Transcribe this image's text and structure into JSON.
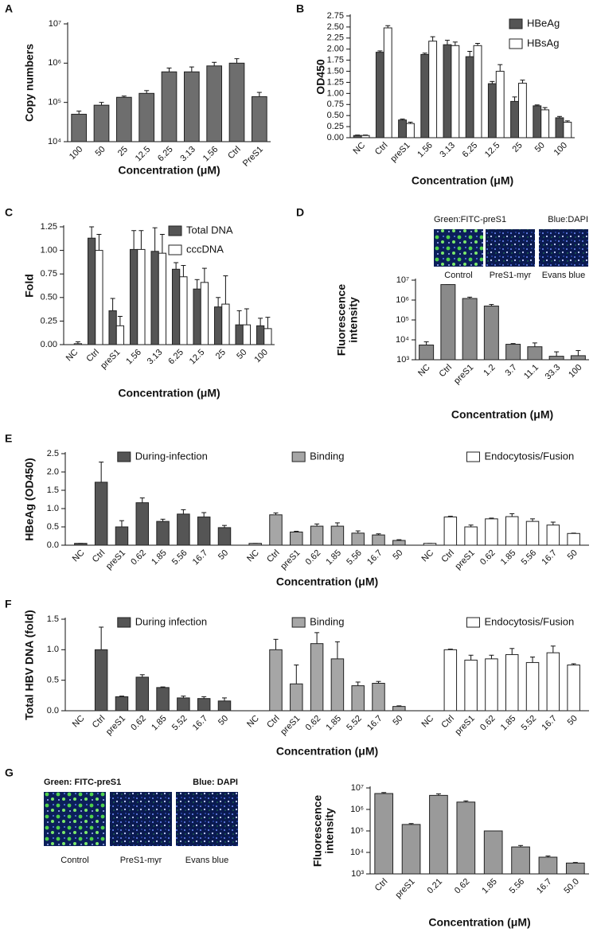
{
  "chart_data": [
    {
      "type": "bar",
      "panel": "A",
      "ylabel": "Copy numbers",
      "xlabel": "Concentration (μM)",
      "log_y": true,
      "categories": [
        "100",
        "50",
        "25",
        "12.5",
        "6.25",
        "3.13",
        "1.56",
        "Ctrl",
        "PreS1"
      ],
      "values": [
        50000,
        85000,
        135000,
        170000,
        600000,
        600000,
        850000,
        1000000,
        140000
      ],
      "errors": [
        10000,
        15000,
        10000,
        30000,
        150000,
        200000,
        200000,
        300000,
        40000
      ],
      "color": "#6e6e6e",
      "ylim": [
        10000,
        10000000
      ],
      "yticks": [
        {
          "value": 10000,
          "label": "10⁴"
        },
        {
          "value": 100000,
          "label": "10⁵"
        },
        {
          "value": 1000000,
          "label": "10⁶"
        },
        {
          "value": 10000000,
          "label": "10⁷"
        }
      ]
    },
    {
      "type": "grouped-bar",
      "panel": "B",
      "ylabel": "OD450",
      "xlabel": "Concentration (μM)",
      "legend": "upper right",
      "categories": [
        "NC",
        "Ctrl",
        "preS1",
        "1.56",
        "3.13",
        "6.25",
        "12.5",
        "25",
        "50",
        "100"
      ],
      "series": [
        {
          "name": "HBeAg",
          "color": "#555555",
          "values": [
            0.05,
            1.93,
            0.4,
            1.88,
            2.1,
            1.83,
            1.22,
            0.82,
            0.72,
            0.45
          ],
          "errors": [
            0.01,
            0.03,
            0.02,
            0.03,
            0.1,
            0.12,
            0.05,
            0.1,
            0.02,
            0.03
          ]
        },
        {
          "name": "HBsAg",
          "color": "#ffffff",
          "values": [
            0.05,
            2.48,
            0.32,
            2.18,
            2.08,
            2.08,
            1.5,
            1.23,
            0.63,
            0.35
          ],
          "errors": [
            0.01,
            0.05,
            0.03,
            0.1,
            0.08,
            0.05,
            0.15,
            0.07,
            0.05,
            0.03
          ]
        }
      ],
      "ylim": [
        0,
        2.75
      ],
      "yticks": [
        {
          "value": 0,
          "label": "0.00"
        },
        0.25,
        {
          "value": 0.5,
          "label": "0.50"
        },
        0.75,
        {
          "value": 1,
          "label": "1.00"
        },
        1.25,
        {
          "value": 1.5,
          "label": "1.50"
        },
        1.75,
        {
          "value": 2,
          "label": "2.00"
        },
        2.25,
        {
          "value": 2.5,
          "label": "2.50"
        },
        2.75
      ]
    },
    {
      "type": "grouped-bar",
      "panel": "C",
      "ylabel": "Fold",
      "xlabel": "Concentration (μM)",
      "legend": "upper right",
      "categories": [
        "NC",
        "Ctrl",
        "preS1",
        "1.56",
        "3.13",
        "6.25",
        "12.5",
        "25",
        "50",
        "100"
      ],
      "series": [
        {
          "name": "Total DNA",
          "color": "#555555",
          "values": [
            0,
            1.13,
            0.36,
            1.01,
            0.99,
            0.8,
            0.59,
            0.4,
            0.21,
            0.2
          ],
          "errors": [
            0,
            0.12,
            0.13,
            0.2,
            0.25,
            0.07,
            0.1,
            0.1,
            0.15,
            0.08
          ]
        },
        {
          "name": "cccDNA",
          "color": "#ffffff",
          "values": [
            0.01,
            1.0,
            0.2,
            1.01,
            0.97,
            0.72,
            0.66,
            0.43,
            0.21,
            0.17
          ],
          "errors": [
            0.02,
            0.17,
            0.1,
            0.2,
            0.2,
            0.12,
            0.15,
            0.3,
            0.17,
            0.12
          ]
        }
      ],
      "ylim": [
        0,
        1.25
      ],
      "yticks": [
        {
          "value": 0,
          "label": "0.00"
        },
        0.25,
        {
          "value": 0.5,
          "label": "0.50"
        },
        0.75,
        {
          "value": 1,
          "label": "1.00"
        },
        1.25
      ]
    },
    {
      "type": "bar",
      "panel": "D",
      "ylabel": [
        "Fluorescence",
        "intensity"
      ],
      "xlabel": "Concentration (μM)",
      "log_y": true,
      "images": {
        "captions": [
          {
            "text": "Green:FITC-preS1",
            "color": "#2aa84a"
          },
          {
            "text": "Blue:DAPI",
            "color": "#2a6fc0"
          }
        ],
        "labels": [
          "Control",
          "PreS1-myr",
          "Evans blue"
        ]
      },
      "categories": [
        "NC",
        "Ctrl",
        "preS1",
        "1.2",
        "3.7",
        "11.1",
        "33.3",
        "100"
      ],
      "values": [
        5500,
        6000000,
        1200000,
        500000,
        6000,
        4500,
        1500,
        1600
      ],
      "errors": [
        2500,
        0,
        200000,
        100000,
        500,
        2500,
        1000,
        1300
      ],
      "color": "#8a8a8a",
      "ylim": [
        1000,
        10000000
      ],
      "yticks": [
        {
          "value": 1000,
          "label": "10³"
        },
        {
          "value": 10000,
          "label": "10⁴"
        },
        {
          "value": 100000,
          "label": "10⁵"
        },
        {
          "value": 1000000,
          "label": "10⁶"
        },
        {
          "value": 10000000,
          "label": "10⁷"
        }
      ]
    },
    {
      "type": "bar-groups",
      "panel": "E",
      "ylabel": "HBeAg (OD450)",
      "xlabel": "Concentration (μM)",
      "legend": "above each group",
      "series": [
        {
          "name": "During-infection",
          "color": "#555555",
          "categories": [
            "NC",
            "Ctrl",
            "preS1",
            "0.62",
            "1.85",
            "5.56",
            "16.7",
            "50"
          ],
          "values": [
            0.05,
            1.72,
            0.5,
            1.16,
            0.65,
            0.85,
            0.77,
            0.48
          ],
          "errors": [
            0,
            0.55,
            0.17,
            0.13,
            0.06,
            0.12,
            0.12,
            0.06
          ]
        },
        {
          "name": "Binding",
          "color": "#a6a6a6",
          "categories": [
            "NC",
            "Ctrl",
            "preS1",
            "0.62",
            "1.85",
            "5.56",
            "16.7",
            "50"
          ],
          "values": [
            0.05,
            0.83,
            0.36,
            0.52,
            0.52,
            0.33,
            0.28,
            0.13
          ],
          "errors": [
            0,
            0.05,
            0.02,
            0.06,
            0.09,
            0.06,
            0.03,
            0.02
          ]
        },
        {
          "name": "Endocytosis/Fusion",
          "color": "#ffffff",
          "categories": [
            "NC",
            "Ctrl",
            "preS1",
            "0.62",
            "1.85",
            "5.56",
            "16.7",
            "50"
          ],
          "values": [
            0.05,
            0.77,
            0.5,
            0.72,
            0.78,
            0.65,
            0.55,
            0.32
          ],
          "errors": [
            0,
            0.02,
            0.05,
            0.02,
            0.08,
            0.07,
            0.08,
            0.01
          ]
        }
      ],
      "ylim": [
        0,
        2.5
      ],
      "yticks": [
        {
          "value": 0,
          "label": "0.0"
        },
        0.5,
        {
          "value": 1,
          "label": "1.0"
        },
        1.5,
        {
          "value": 2,
          "label": "2.0"
        },
        2.5
      ]
    },
    {
      "type": "bar-groups",
      "panel": "F",
      "ylabel": "Total HBV DNA (fold)",
      "xlabel": "Concentration (μM)",
      "legend": "above each group",
      "series": [
        {
          "name": "During infection",
          "color": "#555555",
          "categories": [
            "NC",
            "Ctrl",
            "preS1",
            "0.62",
            "1.85",
            "5.52",
            "16.7",
            "50"
          ],
          "values": [
            0,
            1.0,
            0.23,
            0.55,
            0.38,
            0.21,
            0.2,
            0.16
          ],
          "errors": [
            0,
            0.37,
            0.01,
            0.04,
            0.01,
            0.03,
            0.03,
            0.05
          ]
        },
        {
          "name": "Binding",
          "color": "#a6a6a6",
          "categories": [
            "NC",
            "Ctrl",
            "preS1",
            "0.62",
            "1.85",
            "5.52",
            "16.7",
            "50"
          ],
          "values": [
            0,
            1.0,
            0.44,
            1.1,
            0.85,
            0.41,
            0.45,
            0.07
          ],
          "errors": [
            0,
            0.17,
            0.31,
            0.18,
            0.28,
            0.06,
            0.03,
            0.01
          ]
        },
        {
          "name": "Endocytosis/Fusion",
          "color": "#ffffff",
          "categories": [
            "NC",
            "Ctrl",
            "preS1",
            "0.62",
            "1.85",
            "5.52",
            "16.7",
            "50"
          ],
          "values": [
            0,
            1.0,
            0.83,
            0.85,
            0.92,
            0.79,
            0.95,
            0.75
          ],
          "errors": [
            0,
            0.01,
            0.08,
            0.06,
            0.1,
            0.09,
            0.11,
            0.02
          ]
        }
      ],
      "ylim": [
        0,
        1.5
      ],
      "yticks": [
        {
          "value": 0,
          "label": "0.0"
        },
        0.5,
        {
          "value": 1,
          "label": "1.0"
        },
        1.5
      ]
    },
    {
      "type": "bar",
      "panel": "G",
      "ylabel": [
        "Fluorescence",
        "intensity"
      ],
      "xlabel": "Concentration (μM)",
      "log_y": true,
      "images": {
        "captions": [
          {
            "text": "Green: FITC-preS1",
            "color": "#2aa84a"
          },
          {
            "text": "Blue: DAPI",
            "color": "#2a6fc0"
          }
        ],
        "labels": [
          "Control",
          "PreS1-myr",
          "Evans blue"
        ]
      },
      "categories": [
        "Ctrl",
        "preS1",
        "0.21",
        "0.62",
        "1.85",
        "5.56",
        "16.7",
        "50.0"
      ],
      "values": [
        5500000,
        200000,
        4500000,
        2200000,
        100000,
        18000,
        6000,
        3200
      ],
      "errors": [
        600000,
        20000,
        800000,
        300000,
        0,
        3000,
        800,
        200
      ],
      "color": "#9a9a9a",
      "ylim": [
        1000,
        10000000
      ],
      "yticks": [
        {
          "value": 1000,
          "label": "10³"
        },
        {
          "value": 10000,
          "label": "10⁴"
        },
        {
          "value": 100000,
          "label": "10⁵"
        },
        {
          "value": 1000000,
          "label": "10⁶"
        },
        {
          "value": 10000000,
          "label": "10⁷"
        }
      ]
    }
  ]
}
